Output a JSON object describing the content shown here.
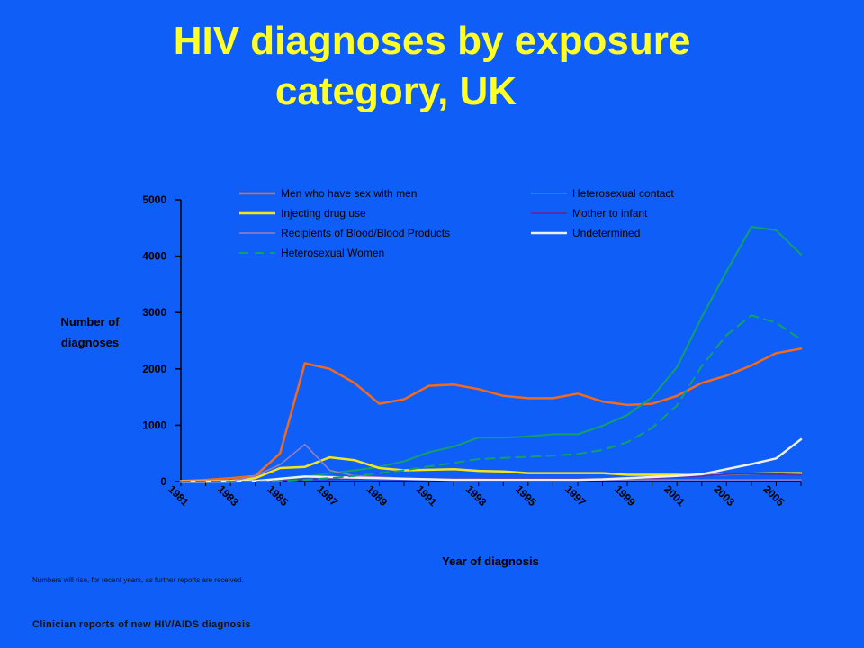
{
  "title_line1": "HIV diagnoses by exposure",
  "title_line2": "category, UK",
  "footnote": "Numbers will rise, for recent years, as further reports are received.",
  "source": "Clinician reports of new HIV/AIDS diagnosis",
  "colors": {
    "background": "#0f5ef7",
    "title": "#ffff2a"
  },
  "chart_data": {
    "type": "line",
    "title": "",
    "xlabel": "Year of diagnosis",
    "ylabel": "Number of diagnoses",
    "ylim": [
      0,
      5000
    ],
    "yticks": [
      "0",
      "1000",
      "2000",
      "3000",
      "4000",
      "5000"
    ],
    "x": [
      1981,
      1982,
      1983,
      1984,
      1985,
      1986,
      1987,
      1988,
      1989,
      1990,
      1991,
      1992,
      1993,
      1994,
      1995,
      1996,
      1997,
      1998,
      1999,
      2000,
      2001,
      2002,
      2003,
      2004,
      2005,
      2006
    ],
    "xtick_labels": [
      "1981",
      "1983",
      "1985",
      "1987",
      "1989",
      "1991",
      "1993",
      "1995",
      "1997",
      "1999",
      "2001",
      "2003",
      "2005"
    ],
    "legend_position": "top",
    "series": [
      {
        "name": "Men who have sex with men",
        "color": "#f26a1b",
        "width": 2.5,
        "dash": "",
        "values": [
          10,
          30,
          60,
          100,
          500,
          2100,
          2000,
          1750,
          1380,
          1460,
          1700,
          1720,
          1640,
          1520,
          1480,
          1480,
          1560,
          1420,
          1360,
          1380,
          1520,
          1750,
          1880,
          2060,
          2280,
          2360
        ]
      },
      {
        "name": "Heterosexual contact",
        "color": "#11a06a",
        "width": 2,
        "dash": "",
        "values": [
          0,
          0,
          0,
          5,
          40,
          80,
          150,
          200,
          260,
          360,
          520,
          620,
          780,
          780,
          800,
          840,
          840,
          990,
          1180,
          1500,
          2030,
          2920,
          3730,
          4520,
          4460,
          4030
        ]
      },
      {
        "name": "Injecting drug use",
        "color": "#f5e51c",
        "width": 2.5,
        "dash": "",
        "values": [
          0,
          0,
          10,
          60,
          240,
          260,
          430,
          380,
          240,
          200,
          210,
          220,
          190,
          180,
          150,
          150,
          150,
          150,
          120,
          120,
          120,
          110,
          130,
          140,
          150,
          150
        ]
      },
      {
        "name": "Mother to infant",
        "color": "#5c2ca8",
        "width": 2,
        "dash": "",
        "values": [
          0,
          0,
          0,
          5,
          20,
          40,
          45,
          50,
          45,
          40,
          40,
          45,
          45,
          45,
          45,
          45,
          45,
          45,
          50,
          60,
          80,
          100,
          130,
          140,
          130,
          120
        ]
      },
      {
        "name": "Recipients of Blood/Blood Products",
        "color": "#9a7fc4",
        "width": 1.5,
        "dash": "",
        "values": [
          0,
          0,
          0,
          100,
          300,
          660,
          200,
          100,
          80,
          60,
          50,
          40,
          40,
          30,
          30,
          30,
          30,
          30,
          30,
          30,
          30,
          30,
          30,
          30,
          30,
          30
        ]
      },
      {
        "name": "Undetermined",
        "color": "#eeeeee",
        "width": 2.5,
        "dash": "",
        "values": [
          0,
          0,
          0,
          10,
          50,
          90,
          80,
          70,
          60,
          50,
          40,
          30,
          30,
          30,
          30,
          30,
          30,
          40,
          60,
          80,
          100,
          130,
          220,
          310,
          410,
          750
        ]
      },
      {
        "name": "Heterosexual Women",
        "color": "#11a06a",
        "width": 2,
        "dash": "10,7",
        "values": [
          0,
          0,
          0,
          0,
          10,
          30,
          60,
          100,
          150,
          200,
          270,
          330,
          400,
          420,
          440,
          460,
          490,
          560,
          700,
          950,
          1350,
          2050,
          2600,
          2950,
          2820,
          2520
        ]
      }
    ]
  }
}
